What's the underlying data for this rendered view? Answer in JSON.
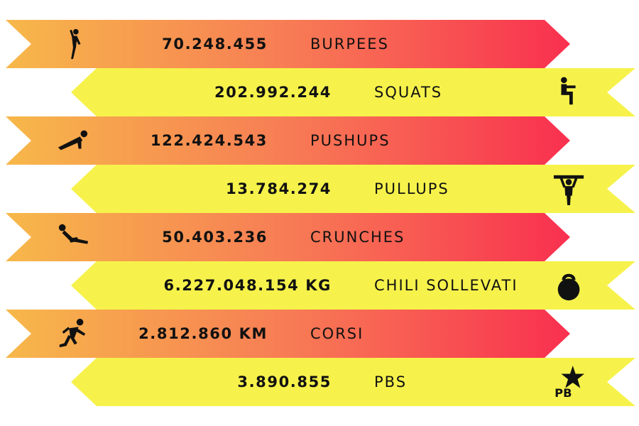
{
  "colors": {
    "gradient_start": "#F7B84A",
    "gradient_mid": "#F77C55",
    "gradient_end": "#F9304F",
    "yellow": "#F6F24B",
    "text": "#111111",
    "icon": "#111111"
  },
  "rows": [
    {
      "value": "70.248.455",
      "label": "BURPEES",
      "icon": "burpee-icon",
      "style": "gradient"
    },
    {
      "value": "202.992.244",
      "label": "SQUATS",
      "icon": "squat-icon",
      "style": "yellow"
    },
    {
      "value": "122.424.543",
      "label": "PUSHUPS",
      "icon": "pushup-icon",
      "style": "gradient"
    },
    {
      "value": "13.784.274",
      "label": "PULLUPS",
      "icon": "pullup-icon",
      "style": "yellow"
    },
    {
      "value": "50.403.236",
      "label": "CRUNCHES",
      "icon": "crunch-icon",
      "style": "gradient"
    },
    {
      "value": "6.227.048.154 KG",
      "label": "CHILI SOLLEVATI",
      "icon": "kettlebell-icon",
      "style": "yellow"
    },
    {
      "value": "2.812.860 KM",
      "label": "CORSI",
      "icon": "runner-icon",
      "style": "gradient"
    },
    {
      "value": "3.890.855",
      "label": "PBS",
      "icon": "pb-star-icon",
      "style": "yellow",
      "icon_text": "PB"
    }
  ]
}
